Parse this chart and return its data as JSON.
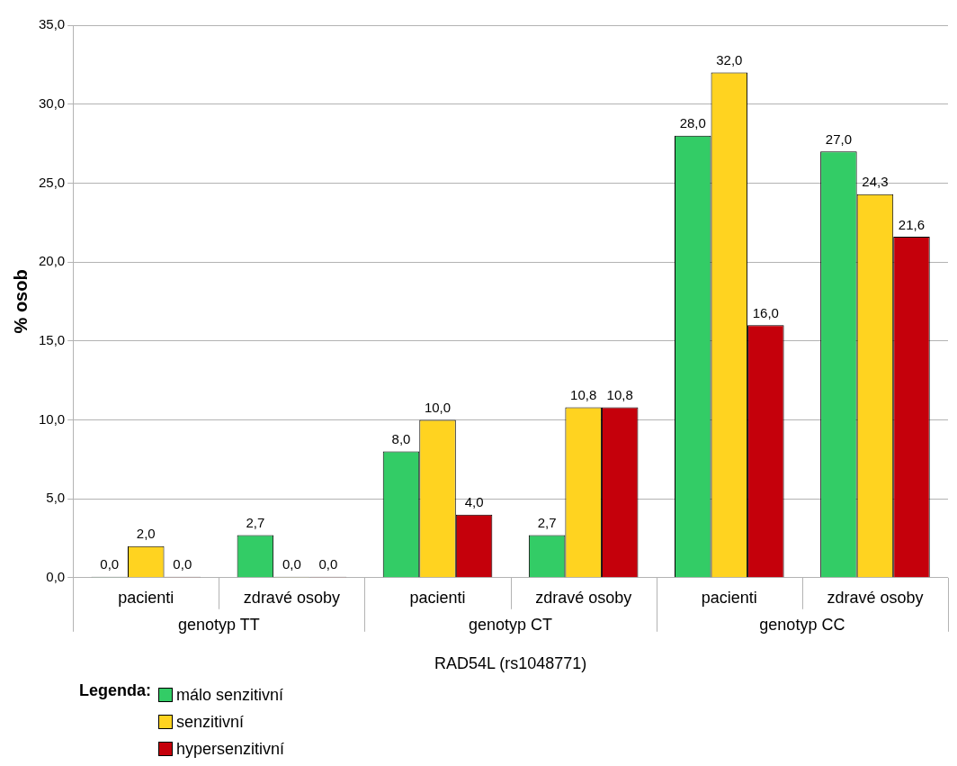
{
  "chart_data": {
    "type": "bar",
    "xlabel": "RAD54L (rs1048771)",
    "ylabel": "% osob",
    "legend_title": "Legenda:",
    "categories": [
      "pacienti",
      "zdravé osoby",
      "pacienti",
      "zdravé osoby",
      "pacienti",
      "zdravé osoby"
    ],
    "annotations": [
      "genotyp TT",
      "genotyp CT",
      "genotyp CC"
    ],
    "series": [
      {
        "name": "málo senzitivní",
        "color": "#33cc66",
        "values": [
          0,
          2.7,
          8,
          2.7,
          28,
          27
        ],
        "value_labels": [
          "0,0",
          "2,7",
          "8,0",
          "2,7",
          "28,0",
          "27,0"
        ]
      },
      {
        "name": "senzitivní",
        "color": "#ffd320",
        "values": [
          2,
          0,
          10,
          10.8,
          32,
          24.3
        ],
        "value_labels": [
          "2,0",
          "0,0",
          "10,0",
          "10,8",
          "32,0",
          "24,3"
        ]
      },
      {
        "name": "hypersenzitivní",
        "color": "#c5000b",
        "values": [
          0,
          0,
          4,
          10.8,
          16,
          21.6
        ],
        "value_labels": [
          "0,0",
          "0,0",
          "4,0",
          "10,8",
          "16,0",
          "21,6"
        ]
      }
    ],
    "ylim": [
      0,
      35
    ],
    "yticks": [
      {
        "value": 0,
        "label": "0,0"
      },
      {
        "value": 5,
        "label": "5,0"
      },
      {
        "value": 10,
        "label": "10,0"
      },
      {
        "value": 15,
        "label": "15,0"
      },
      {
        "value": 20,
        "label": "20,0"
      },
      {
        "value": 25,
        "label": "25,0"
      },
      {
        "value": 30,
        "label": "30,0"
      },
      {
        "value": 35,
        "label": "35,0"
      }
    ],
    "grid": "y",
    "legend": "bottom left"
  }
}
